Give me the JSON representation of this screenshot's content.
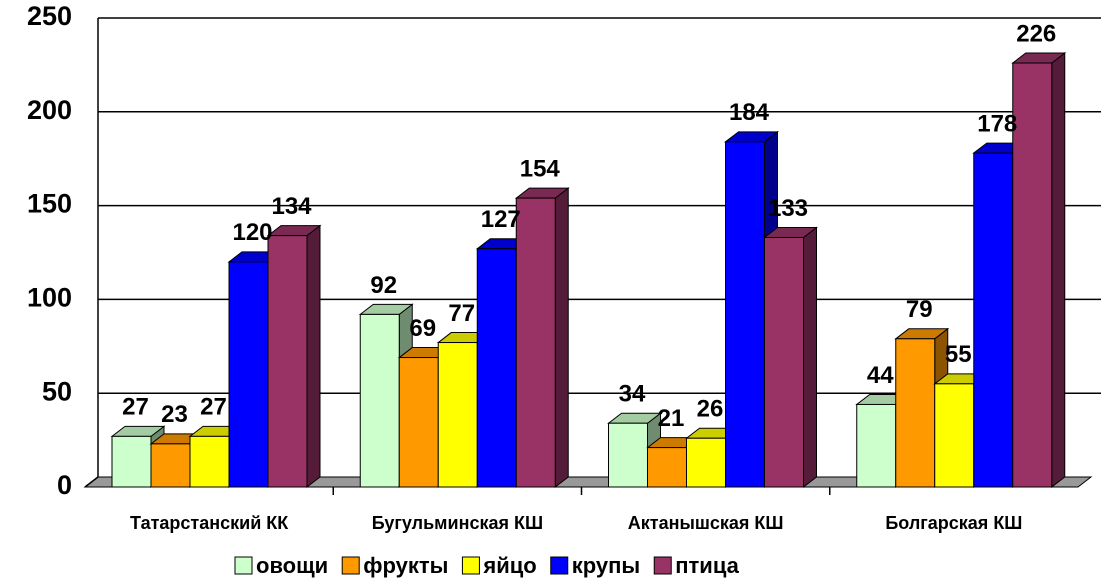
{
  "chart_data": {
    "type": "bar3d",
    "categories": [
      "Татарстанский КК",
      "Бугульминская КШ",
      "Актанышская КШ",
      "Болгарская КШ"
    ],
    "series": [
      {
        "name": "овощи",
        "color": "#ccffcc",
        "values": [
          27,
          92,
          34,
          44
        ]
      },
      {
        "name": "фрукты",
        "color": "#ff9900",
        "values": [
          23,
          69,
          21,
          79
        ]
      },
      {
        "name": "яйцо",
        "color": "#ffff00",
        "values": [
          27,
          77,
          26,
          55
        ]
      },
      {
        "name": "крупы",
        "color": "#0000ff",
        "values": [
          120,
          127,
          184,
          178
        ]
      },
      {
        "name": "птица",
        "color": "#993366",
        "values": [
          134,
          154,
          133,
          226
        ]
      }
    ],
    "ylim": [
      0,
      250
    ],
    "yticks": [
      0,
      50,
      100,
      150,
      200,
      250
    ],
    "grid": true,
    "legend": "bottom"
  }
}
